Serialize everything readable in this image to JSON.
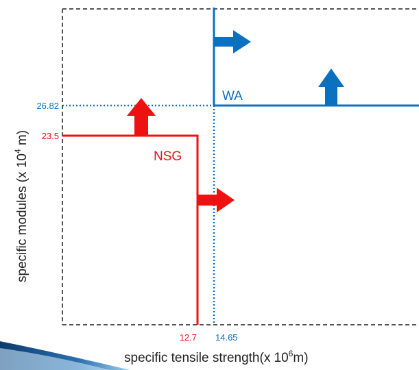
{
  "colors": {
    "frame": "#555555",
    "nsg": "#ee1111",
    "wa": "#0a70c0",
    "axis_text": "#222222",
    "swoosh": "#1a4f8a"
  },
  "axes": {
    "x_label": "specific tensile strength(x 10",
    "x_label_sup": "6",
    "x_label_tail": "m)",
    "y_label": "specific modules (x 10",
    "y_label_sup": "4",
    "y_label_tail": " m)"
  },
  "series": [
    {
      "name": "NSG",
      "color_key": "nsg",
      "x_value": 12.7,
      "y_value": 23.5,
      "x_tick": "12.7",
      "y_tick": "23.5"
    },
    {
      "name": "WA",
      "color_key": "wa",
      "x_value": 14.65,
      "y_value": 26.82,
      "x_tick": "14.65",
      "y_tick": "26.82"
    }
  ]
}
